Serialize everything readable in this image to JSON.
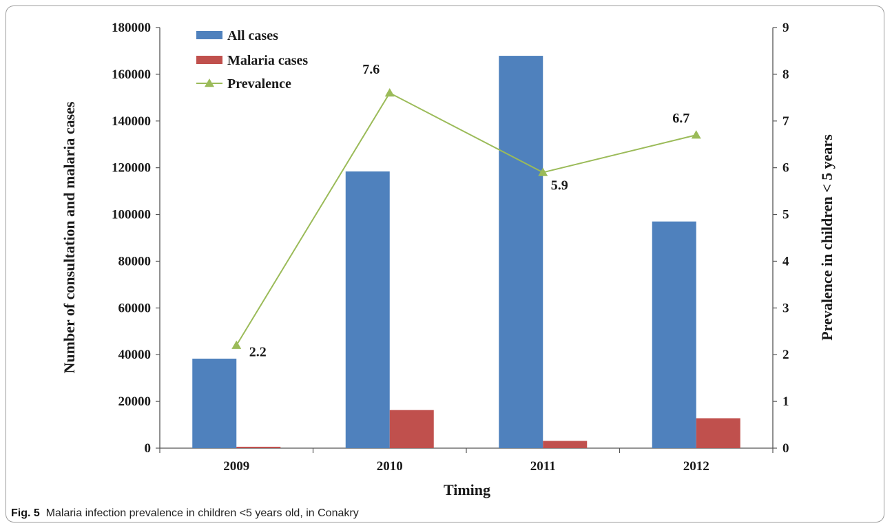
{
  "figure": {
    "label": "Fig. 5",
    "caption": "Malaria infection prevalence in children <5 years old, in Conakry"
  },
  "colors": {
    "all_cases": "#4F81BD",
    "malaria_cases": "#C0504D",
    "prevalence": "#9BBB59"
  },
  "chart_data": {
    "type": "bar",
    "categories": [
      "2009",
      "2010",
      "2011",
      "2012"
    ],
    "series": [
      {
        "name": "All cases",
        "type": "bar",
        "axis": "left",
        "values": [
          38300,
          118400,
          167900,
          97000
        ]
      },
      {
        "name": "Malaria cases",
        "type": "bar",
        "axis": "left",
        "values": [
          600,
          16300,
          3100,
          12800
        ]
      },
      {
        "name": "Prevalence",
        "type": "line",
        "marker": "triangle",
        "axis": "right",
        "values": [
          2.2,
          7.6,
          5.9,
          6.7
        ],
        "data_labels": [
          "2.2",
          "7.6",
          "5.9",
          "6.7"
        ]
      }
    ],
    "xlabel": "Timing",
    "ylabel": "Number of consultation and malaria  cases",
    "ylabel_right": "Prevalence in children < 5 years",
    "ylim": [
      0,
      180000
    ],
    "ylim_right": [
      0,
      9
    ],
    "yticks": [
      "0",
      "20000",
      "40000",
      "60000",
      "80000",
      "100000",
      "120000",
      "140000",
      "160000",
      "180000"
    ],
    "yticks_right": [
      "0",
      "1",
      "2",
      "3",
      "4",
      "5",
      "6",
      "7",
      "8",
      "9"
    ],
    "legend": [
      "All cases",
      "Malaria cases",
      "Prevalence"
    ],
    "legend_position": "top-left",
    "grid": false
  }
}
